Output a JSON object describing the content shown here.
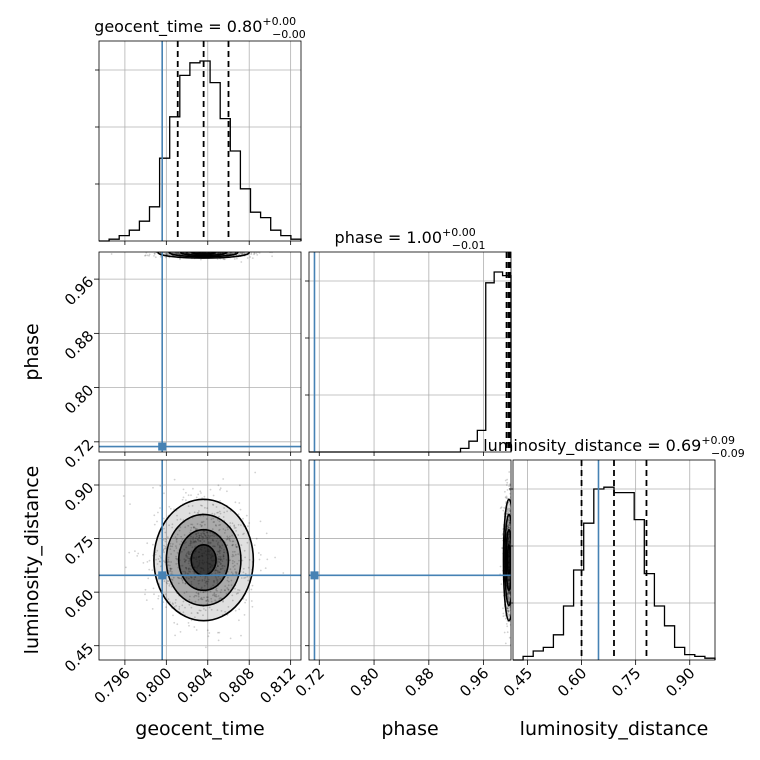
{
  "chart_data": {
    "type": "corner",
    "parameters": [
      {
        "name": "geocent_time",
        "label": "geocent_time",
        "range": [
          0.7935,
          0.813
        ],
        "ticks": [
          "0.796",
          "0.800",
          "0.804",
          "0.808",
          "0.812"
        ],
        "tick_values": [
          0.796,
          0.8,
          0.804,
          0.808,
          0.812
        ],
        "truth": 0.7996,
        "quantiles": [
          0.8011,
          0.8036,
          0.806
        ],
        "title": {
          "prefix": "geocent_time = 0.80",
          "sup": "+0.00",
          "sub": "−0.00"
        }
      },
      {
        "name": "phase",
        "label": "phase",
        "range": [
          0.705,
          1.0
        ],
        "ticks": [
          "0.72",
          "0.80",
          "0.88",
          "0.96"
        ],
        "tick_values": [
          0.72,
          0.8,
          0.88,
          0.96
        ],
        "truth": 0.713,
        "quantiles": [
          0.9935,
          0.9965,
          0.999
        ],
        "title": {
          "prefix": "phase = 1.00",
          "sup": "+0.00",
          "sub": "−0.01"
        }
      },
      {
        "name": "luminosity_distance",
        "label": "luminosity_distance",
        "range": [
          0.41,
          0.97
        ],
        "ticks": [
          "0.45",
          "0.60",
          "0.75",
          "0.90"
        ],
        "tick_values": [
          0.45,
          0.6,
          0.75,
          0.9
        ],
        "truth": 0.647,
        "quantiles": [
          0.6,
          0.69,
          0.78
        ],
        "title": {
          "prefix": "luminosity_distance = 0.69",
          "sup": "+0.09",
          "sub": "−0.09"
        }
      }
    ],
    "hist": {
      "geocent_time": {
        "edges": [
          0.7935,
          0.813
        ],
        "counts": [
          0.0,
          0.01,
          0.03,
          0.06,
          0.11,
          0.19,
          0.46,
          0.69,
          0.92,
          0.99,
          1.0,
          0.88,
          0.68,
          0.5,
          0.29,
          0.16,
          0.13,
          0.06,
          0.03,
          0.01
        ]
      },
      "phase": {
        "edges": [
          0.705,
          1.0
        ],
        "counts": [
          0,
          0,
          0,
          0,
          0,
          0,
          0,
          0,
          0,
          0,
          0,
          0,
          0,
          0,
          0,
          0,
          0,
          0,
          0.02,
          0.06,
          0.12,
          0.94,
          1.0,
          0.98
        ]
      },
      "luminosity_distance": {
        "edges": [
          0.41,
          0.97
        ],
        "counts": [
          0.0,
          0.02,
          0.05,
          0.07,
          0.14,
          0.3,
          0.5,
          0.76,
          0.95,
          0.96,
          0.93,
          0.93,
          0.78,
          0.48,
          0.3,
          0.19,
          0.07,
          0.03,
          0.02,
          0.01
        ]
      }
    },
    "blobs": {
      "phase_vs_geocent_time": {
        "center": [
          0.8036,
          0.999
        ],
        "spread": [
          0.0022,
          0.004
        ]
      },
      "luminosity_distance_vs_geocent_time": {
        "center": [
          0.8036,
          0.69
        ],
        "spread": [
          0.0024,
          0.085
        ]
      },
      "luminosity_distance_vs_phase": {
        "center": [
          0.997,
          0.69
        ],
        "spread": [
          0.004,
          0.085
        ]
      }
    },
    "colors": {
      "truth": "#4682b4",
      "line": "#000000",
      "grid": "#b0b0b0"
    }
  }
}
